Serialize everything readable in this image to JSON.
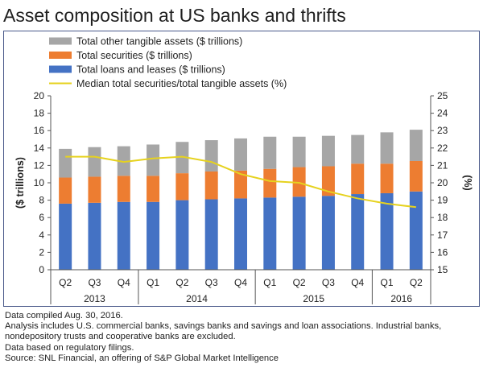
{
  "title": "Asset composition at US banks and thrifts",
  "colors": {
    "other": "#a6a6a6",
    "securities": "#ed7d31",
    "loans": "#4472c4",
    "median_line": "#e6d21e",
    "axis": "#555555",
    "panel_border": "#4a5a8a"
  },
  "chart_data": {
    "type": "bar",
    "stacked": true,
    "categories": [
      "Q2",
      "Q3",
      "Q4",
      "Q1",
      "Q2",
      "Q3",
      "Q4",
      "Q1",
      "Q2",
      "Q3",
      "Q4",
      "Q1",
      "Q2"
    ],
    "year_groups": [
      {
        "label": "2013",
        "count": 3
      },
      {
        "label": "2014",
        "count": 4
      },
      {
        "label": "2015",
        "count": 4
      },
      {
        "label": "2016",
        "count": 2
      }
    ],
    "series": [
      {
        "name": "Total loans and leases ($ trillions)",
        "key": "loans",
        "values": [
          7.6,
          7.7,
          7.8,
          7.8,
          8.0,
          8.1,
          8.2,
          8.3,
          8.4,
          8.5,
          8.7,
          8.8,
          9.0
        ]
      },
      {
        "name": "Total securities ($ trillions)",
        "key": "securities",
        "values": [
          3.0,
          3.0,
          3.0,
          3.0,
          3.1,
          3.2,
          3.2,
          3.3,
          3.4,
          3.4,
          3.5,
          3.4,
          3.5
        ]
      },
      {
        "name": "Total other tangible assets ($ trillions)",
        "key": "other",
        "values": [
          3.3,
          3.4,
          3.4,
          3.6,
          3.6,
          3.6,
          3.7,
          3.7,
          3.5,
          3.5,
          3.3,
          3.6,
          3.6
        ]
      }
    ],
    "line_series": {
      "name": "Median total securities/total tangible assets (%)",
      "axis": "right",
      "values": [
        21.5,
        21.5,
        21.2,
        21.4,
        21.5,
        21.2,
        20.5,
        20.1,
        20.0,
        19.5,
        19.1,
        18.8,
        18.6
      ]
    },
    "legend_order": [
      "other",
      "securities",
      "loans",
      "line"
    ],
    "ylabel": "($ trillions)",
    "ylim": [
      0,
      20
    ],
    "yticks": [
      0,
      2,
      4,
      6,
      8,
      10,
      12,
      14,
      16,
      18,
      20
    ],
    "y2label": "(%)",
    "y2lim": [
      15,
      25
    ],
    "y2ticks": [
      15,
      16,
      17,
      18,
      19,
      20,
      21,
      22,
      23,
      24,
      25
    ],
    "grid": false,
    "legend_position": "top-left"
  },
  "notes": [
    "Data compiled Aug. 30, 2016.",
    "Analysis includes U.S. commercial banks, savings banks and savings and loan associations. Industrial banks,",
    "nondepository trusts and cooperative banks are excluded.",
    "Data based on regulatory filings.",
    "Source: SNL Financial, an offering of S&P Global Market Intelligence"
  ]
}
